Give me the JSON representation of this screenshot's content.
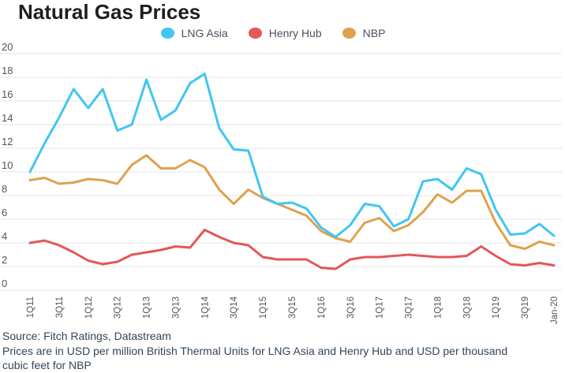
{
  "title": "Natural Gas Prices",
  "legend": [
    {
      "label": "LNG Asia",
      "color": "#41c6f1"
    },
    {
      "label": "Henry Hub",
      "color": "#e25757"
    },
    {
      "label": "NBP",
      "color": "#dfa14f"
    }
  ],
  "footer": {
    "source": "Source: Fitch Ratings, Datastream",
    "note": "Prices are in USD per million British Thermal Units for LNG Asia and Henry Hub and USD per thousand cubic feet for NBP"
  },
  "colors": {
    "grid": "#e4e4e4",
    "axis_text": "#555555",
    "title_text": "#1e1e1e",
    "footer_text": "#32455a"
  },
  "chart_data": {
    "type": "line",
    "title": "Natural Gas Prices",
    "xlabel": "",
    "ylabel": "",
    "ylim": [
      0,
      20
    ],
    "ytick_step": 2,
    "grid": "horizontal",
    "legend_position": "top",
    "categories": [
      "1Q11",
      "2Q11",
      "3Q11",
      "4Q11",
      "1Q12",
      "2Q12",
      "3Q12",
      "4Q12",
      "1Q13",
      "2Q13",
      "3Q13",
      "4Q13",
      "1Q14",
      "2Q14",
      "3Q14",
      "4Q14",
      "1Q15",
      "2Q15",
      "3Q15",
      "4Q15",
      "1Q16",
      "2Q16",
      "3Q16",
      "4Q16",
      "1Q17",
      "2Q17",
      "3Q17",
      "4Q17",
      "1Q18",
      "2Q18",
      "3Q18",
      "4Q18",
      "1Q19",
      "2Q19",
      "3Q19",
      "4Q19",
      "Jan-20"
    ],
    "x_tick_labels": [
      "1Q11",
      "3Q11",
      "1Q12",
      "3Q12",
      "1Q13",
      "3Q13",
      "1Q14",
      "3Q14",
      "1Q15",
      "3Q15",
      "1Q16",
      "3Q16",
      "1Q17",
      "3Q17",
      "1Q18",
      "3Q18",
      "1Q19",
      "3Q19",
      "Jan-20"
    ],
    "series": [
      {
        "name": "LNG Asia",
        "color": "#41c6f1",
        "values": [
          10.0,
          12.4,
          14.6,
          17.0,
          15.4,
          17.0,
          13.5,
          14.0,
          17.8,
          14.4,
          15.2,
          17.5,
          18.3,
          13.7,
          11.9,
          11.8,
          7.9,
          7.3,
          7.4,
          6.9,
          5.3,
          4.5,
          5.5,
          7.3,
          7.1,
          5.4,
          6.0,
          9.2,
          9.4,
          8.5,
          10.3,
          9.8,
          6.8,
          4.7,
          4.8,
          5.6,
          4.6
        ]
      },
      {
        "name": "Henry Hub",
        "color": "#e25757",
        "values": [
          4.0,
          4.2,
          3.8,
          3.2,
          2.5,
          2.2,
          2.4,
          3.0,
          3.2,
          3.4,
          3.7,
          3.6,
          5.1,
          4.5,
          4.0,
          3.8,
          2.8,
          2.6,
          2.6,
          2.6,
          1.9,
          1.8,
          2.6,
          2.8,
          2.8,
          2.9,
          3.0,
          2.9,
          2.8,
          2.8,
          2.9,
          3.7,
          2.9,
          2.2,
          2.1,
          2.3,
          2.1
        ]
      },
      {
        "name": "NBP",
        "color": "#dfa14f",
        "values": [
          9.3,
          9.5,
          9.0,
          9.1,
          9.4,
          9.3,
          9.0,
          10.6,
          11.4,
          10.3,
          10.3,
          11.0,
          10.4,
          8.5,
          7.3,
          8.5,
          7.8,
          7.3,
          6.8,
          6.3,
          5.0,
          4.4,
          4.1,
          5.7,
          6.1,
          5.0,
          5.5,
          6.6,
          8.1,
          7.4,
          8.4,
          8.4,
          5.7,
          3.8,
          3.5,
          4.1,
          3.8
        ]
      }
    ]
  }
}
